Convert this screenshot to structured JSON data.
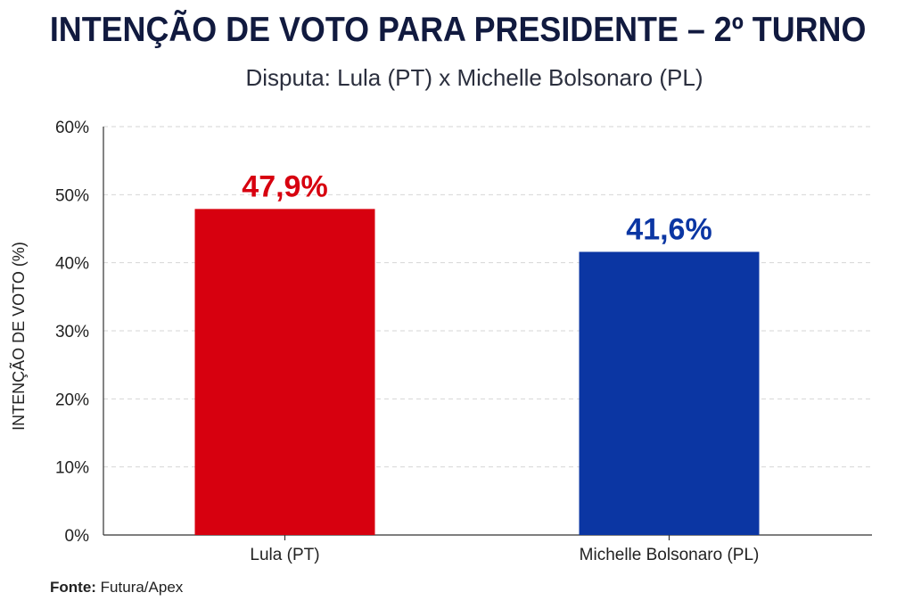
{
  "chart_data": {
    "type": "bar",
    "title": "INTENÇÃO DE VOTO PARA PRESIDENTE – 2º TURNO",
    "subtitle": "Disputa: Lula (PT) x Michelle Bolsonaro (PL)",
    "ylabel": "INTENÇÃO DE VOTO (%)",
    "xlabel": "",
    "ylim": [
      0,
      60
    ],
    "yticks": [
      0,
      10,
      20,
      30,
      40,
      50,
      60
    ],
    "ytick_labels": [
      "0%",
      "10%",
      "20%",
      "30%",
      "40%",
      "50%",
      "60%"
    ],
    "grid": true,
    "categories": [
      "Lula (PT)",
      "Michelle Bolsonaro (PL)"
    ],
    "values": [
      47.9,
      41.6
    ],
    "data_labels": [
      "47,9%",
      "41,6%"
    ],
    "colors": [
      "#d7000f",
      "#0b36a3"
    ],
    "label_colors": [
      "#d7000f",
      "#0b36a3"
    ]
  },
  "source": {
    "label": "Fonte:",
    "text": "Futura/Apex"
  }
}
